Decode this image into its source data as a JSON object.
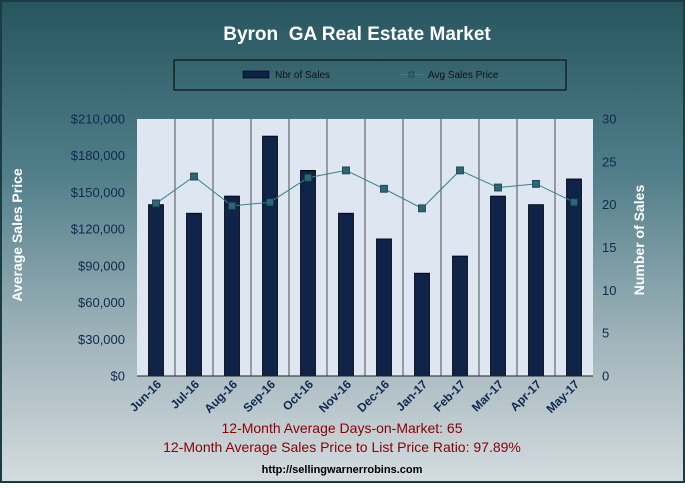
{
  "chart_data": {
    "type": "bar",
    "title": "Byron  GA Real Estate Market",
    "ylabel": "Average Sales Price",
    "y2label": "Number of Sales",
    "categories": [
      "Jun-16",
      "Jul-16",
      "Aug-16",
      "Sep-16",
      "Oct-16",
      "Nov-16",
      "Dec-16",
      "Jan-17",
      "Feb-17",
      "Mar-17",
      "Apr-17",
      "May-17"
    ],
    "ylim": [
      0,
      210000
    ],
    "y_ticks": [
      "$0",
      "$30,000",
      "$60,000",
      "$90,000",
      "$120,000",
      "$150,000",
      "$180,000",
      "$210,000"
    ],
    "y_tick_values": [
      0,
      30000,
      60000,
      90000,
      120000,
      150000,
      180000,
      210000
    ],
    "y2lim": [
      0,
      30
    ],
    "y2_ticks": [
      "0",
      "5",
      "10",
      "15",
      "20",
      "25",
      "30"
    ],
    "y2_tick_values": [
      0,
      5,
      10,
      15,
      20,
      25,
      30
    ],
    "grid": "vertical",
    "legend_position": "top",
    "series": [
      {
        "name": "Nbr of Sales",
        "type": "bar",
        "axis": "right",
        "color": "#0f2248",
        "values": [
          20,
          19,
          21,
          28,
          24,
          19,
          16,
          12,
          14,
          21,
          20,
          23
        ]
      },
      {
        "name": "Avg Sales Price",
        "type": "line",
        "axis": "left",
        "color": "#3e7f8a",
        "values": [
          141000,
          163000,
          139000,
          142000,
          162000,
          168000,
          153000,
          137000,
          168000,
          154000,
          157000,
          142000
        ]
      }
    ]
  },
  "footer": {
    "line1": "12-Month Average Days-on-Market: 65",
    "line2": "12-Month Average Sales Price to List Price Ratio: 97.89%",
    "url": "http://sellingwarnerrobins.com"
  },
  "colors": {
    "bg_top": "#2b5f6b",
    "bg_bottom": "#c9d3d7",
    "plot_bg": "#dde6f1",
    "footer_red": "#8b0000",
    "axis_text": "#0f2a50"
  }
}
